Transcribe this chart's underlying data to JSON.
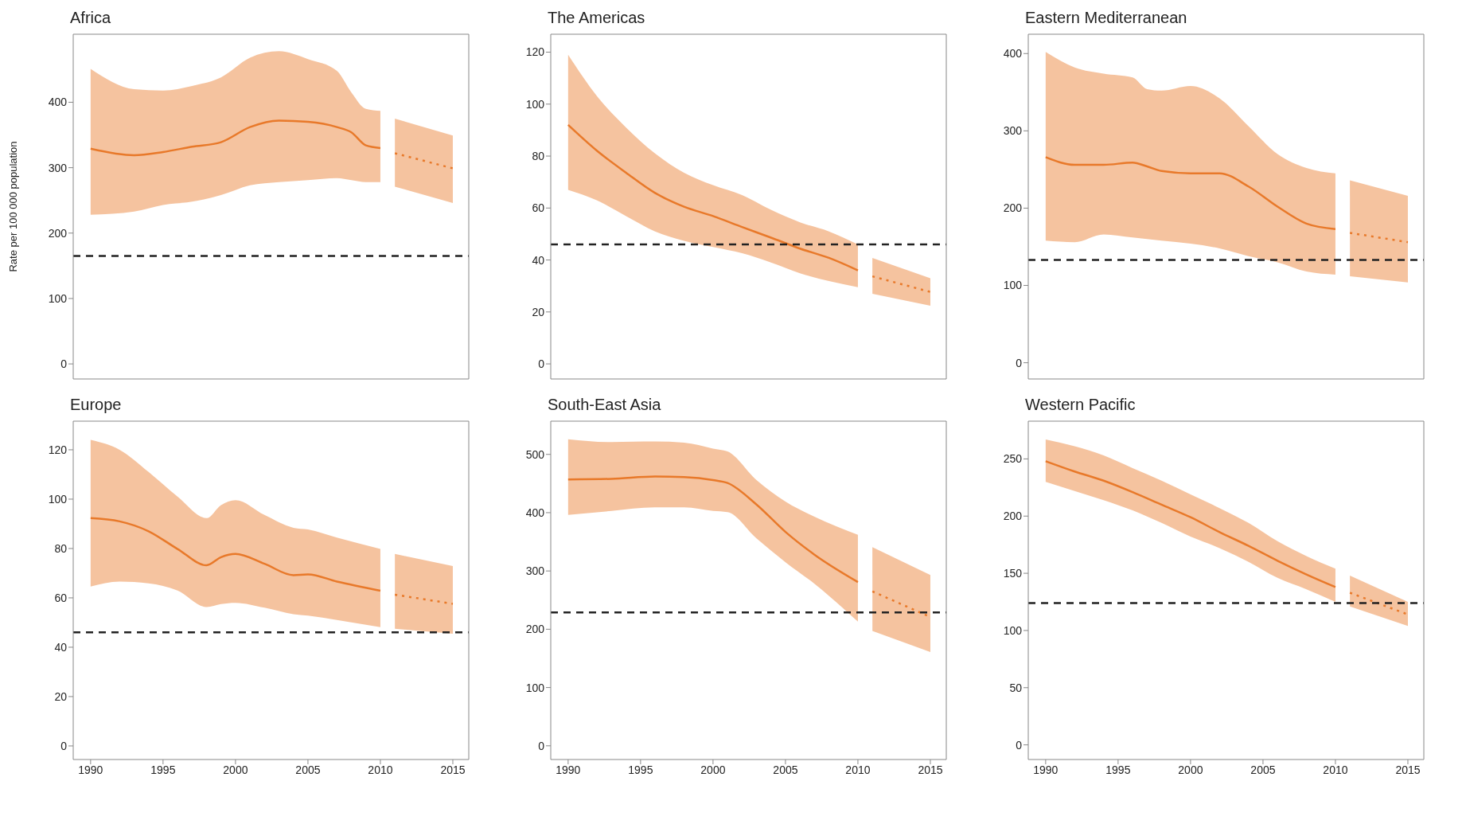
{
  "chart_data": [
    {
      "type": "line",
      "title": "Africa",
      "ylabel": "Rate per 100 000 population",
      "xlim": [
        1988.8,
        2016.1
      ],
      "xticks": [
        1990,
        1995,
        2000,
        2005,
        2010,
        2015
      ],
      "ylim": [
        -23,
        504
      ],
      "yticks": [
        0,
        100,
        200,
        300,
        400
      ],
      "tick_labels": "y",
      "series": [
        {
          "color": "#e8792a",
          "line_style": "solid",
          "x": [
            1990,
            1993,
            1995,
            1997,
            1999,
            2001,
            2003,
            2005,
            2007,
            2008,
            2009,
            2010
          ],
          "values": [
            329,
            319,
            324,
            332,
            339,
            362,
            372,
            370,
            362,
            354,
            334,
            330
          ],
          "lower": [
            228,
            233,
            243,
            248,
            258,
            273,
            278,
            281,
            284,
            281,
            278,
            278
          ],
          "upper": [
            451,
            420,
            418,
            425,
            438,
            468,
            478,
            466,
            448,
            415,
            390,
            387
          ]
        },
        {
          "color": "#e8792a",
          "line_style": "dotted",
          "x": [
            2011,
            2015
          ],
          "values": [
            322,
            299
          ],
          "lower": [
            271,
            246
          ],
          "upper": [
            375,
            349
          ]
        }
      ],
      "ref_lines": [
        {
          "axis": "y",
          "value": 165,
          "color": "#222222",
          "line_style": "dashed"
        }
      ]
    },
    {
      "type": "line",
      "title": "The Americas",
      "xlim": [
        1988.8,
        2016.1
      ],
      "xticks": [
        1990,
        1995,
        2000,
        2005,
        2010,
        2015
      ],
      "ylim": [
        -5.8,
        126.9
      ],
      "yticks": [
        0,
        20,
        40,
        60,
        80,
        100,
        120
      ],
      "tick_labels": "y",
      "series": [
        {
          "color": "#e8792a",
          "line_style": "solid",
          "x": [
            1990,
            1992,
            1994,
            1996,
            1998,
            2000,
            2002,
            2004,
            2006,
            2008,
            2010
          ],
          "values": [
            92,
            82,
            73.6,
            65.8,
            60.5,
            56.9,
            52.7,
            48.6,
            44.4,
            40.8,
            36
          ],
          "lower": [
            67,
            62.9,
            56.9,
            51,
            47.4,
            45,
            42.6,
            39,
            34.9,
            31.9,
            29.5
          ],
          "upper": [
            119,
            103,
            91,
            81,
            73.6,
            68.8,
            65,
            59.3,
            54.5,
            51,
            46
          ]
        },
        {
          "color": "#e8792a",
          "line_style": "dotted",
          "x": [
            2011,
            2015
          ],
          "values": [
            33.7,
            27.7
          ],
          "lower": [
            27,
            22.4
          ],
          "upper": [
            40.8,
            33
          ]
        }
      ],
      "ref_lines": [
        {
          "axis": "y",
          "value": 46,
          "color": "#222222",
          "line_style": "dashed"
        }
      ]
    },
    {
      "type": "line",
      "title": "Eastern Mediterranean",
      "xlim": [
        1988.8,
        2016.1
      ],
      "xticks": [
        1990,
        1995,
        2000,
        2005,
        2010,
        2015
      ],
      "ylim": [
        -21,
        425
      ],
      "yticks": [
        0,
        100,
        200,
        300,
        400
      ],
      "tick_labels": "y",
      "series": [
        {
          "color": "#e8792a",
          "line_style": "solid",
          "x": [
            1990,
            1992,
            1994,
            1996,
            1997,
            1998,
            2000,
            2002,
            2004,
            2006,
            2008,
            2010
          ],
          "values": [
            266,
            256,
            256,
            259,
            254,
            248,
            245,
            245,
            228,
            202,
            180,
            173
          ],
          "lower": [
            158,
            156,
            166,
            162,
            160,
            158,
            154,
            148,
            138,
            130,
            118,
            114
          ],
          "upper": [
            402,
            382,
            374,
            369,
            354,
            352,
            358,
            342,
            306,
            270,
            252,
            245
          ]
        },
        {
          "color": "#e8792a",
          "line_style": "dotted",
          "x": [
            2011,
            2015
          ],
          "values": [
            168,
            156
          ],
          "lower": [
            112,
            104
          ],
          "upper": [
            236,
            216
          ]
        }
      ],
      "ref_lines": [
        {
          "axis": "y",
          "value": 133,
          "color": "#222222",
          "line_style": "dashed"
        }
      ]
    },
    {
      "type": "line",
      "title": "Europe",
      "xlim": [
        1988.8,
        2016.1
      ],
      "xticks": [
        1990,
        1995,
        2000,
        2005,
        2010,
        2015
      ],
      "ylim": [
        -5.5,
        131.6
      ],
      "yticks": [
        0,
        20,
        40,
        60,
        80,
        100,
        120
      ],
      "series": [
        {
          "color": "#e8792a",
          "line_style": "solid",
          "x": [
            1990,
            1992,
            1994,
            1996,
            1998,
            1999,
            2000,
            2002,
            2004,
            2005,
            2007,
            2010
          ],
          "values": [
            92.3,
            91,
            87,
            79.8,
            73.2,
            76.5,
            77.8,
            73.8,
            69.2,
            69.5,
            66.6,
            62.9
          ],
          "lower": [
            64.6,
            66.6,
            65.9,
            63,
            56.3,
            57.5,
            58,
            56,
            53.4,
            52.8,
            51,
            48.1
          ],
          "upper": [
            124,
            120,
            111,
            101,
            92.3,
            97.6,
            99.6,
            93.6,
            88.4,
            87.7,
            84.4,
            79.8
          ]
        },
        {
          "color": "#e8792a",
          "line_style": "dotted",
          "x": [
            2011,
            2015
          ],
          "values": [
            61.3,
            57.6
          ],
          "lower": [
            47.5,
            45.5
          ],
          "upper": [
            77.8,
            72.9
          ]
        }
      ],
      "ref_lines": [
        {
          "axis": "y",
          "value": 46,
          "color": "#222222",
          "line_style": "dashed"
        }
      ]
    },
    {
      "type": "line",
      "title": "South-East Asia",
      "xlim": [
        1988.8,
        2016.1
      ],
      "xticks": [
        1990,
        1995,
        2000,
        2005,
        2010,
        2015
      ],
      "ylim": [
        -23.5,
        557
      ],
      "yticks": [
        0,
        100,
        200,
        300,
        400,
        500
      ],
      "series": [
        {
          "color": "#e8792a",
          "line_style": "solid",
          "x": [
            1990,
            1993,
            1996,
            1998,
            2000,
            2001,
            2003,
            2005,
            2007,
            2010
          ],
          "values": [
            457,
            458,
            462,
            461,
            456,
            451,
            414,
            367,
            328,
            281
          ],
          "lower": [
            396,
            403,
            409,
            409,
            403,
            401,
            356,
            315,
            278,
            213
          ],
          "upper": [
            526,
            521,
            522,
            520,
            510,
            505,
            456,
            419,
            393,
            362
          ]
        },
        {
          "color": "#e8792a",
          "line_style": "dotted",
          "x": [
            2011,
            2015
          ],
          "values": [
            265,
            221
          ],
          "lower": [
            197,
            161
          ],
          "upper": [
            341,
            293
          ]
        }
      ],
      "ref_lines": [
        {
          "axis": "y",
          "value": 229,
          "color": "#222222",
          "line_style": "dashed"
        }
      ]
    },
    {
      "type": "line",
      "title": "Western Pacific",
      "xlim": [
        1988.8,
        2016.1
      ],
      "xticks": [
        1990,
        1995,
        2000,
        2005,
        2010,
        2015
      ],
      "ylim": [
        -12.8,
        283
      ],
      "yticks": [
        0,
        50,
        100,
        150,
        200,
        250
      ],
      "series": [
        {
          "color": "#e8792a",
          "line_style": "solid",
          "x": [
            1990,
            1992,
            1994,
            1996,
            1998,
            2000,
            2002,
            2004,
            2006,
            2008,
            2010
          ],
          "values": [
            248,
            239,
            231,
            221,
            210,
            199,
            186,
            174,
            161,
            149,
            138
          ],
          "lower": [
            230,
            222,
            214,
            205,
            194,
            182,
            172,
            160,
            146,
            136,
            125
          ],
          "upper": [
            267,
            261,
            253,
            242,
            231,
            219,
            207,
            194,
            178,
            165,
            154
          ]
        },
        {
          "color": "#e8792a",
          "line_style": "dotted",
          "x": [
            2011,
            2015
          ],
          "values": [
            133,
            114
          ],
          "lower": [
            121,
            104
          ],
          "upper": [
            148,
            125
          ]
        }
      ],
      "ref_lines": [
        {
          "axis": "y",
          "value": 124,
          "color": "#222222",
          "line_style": "dashed"
        }
      ]
    }
  ]
}
